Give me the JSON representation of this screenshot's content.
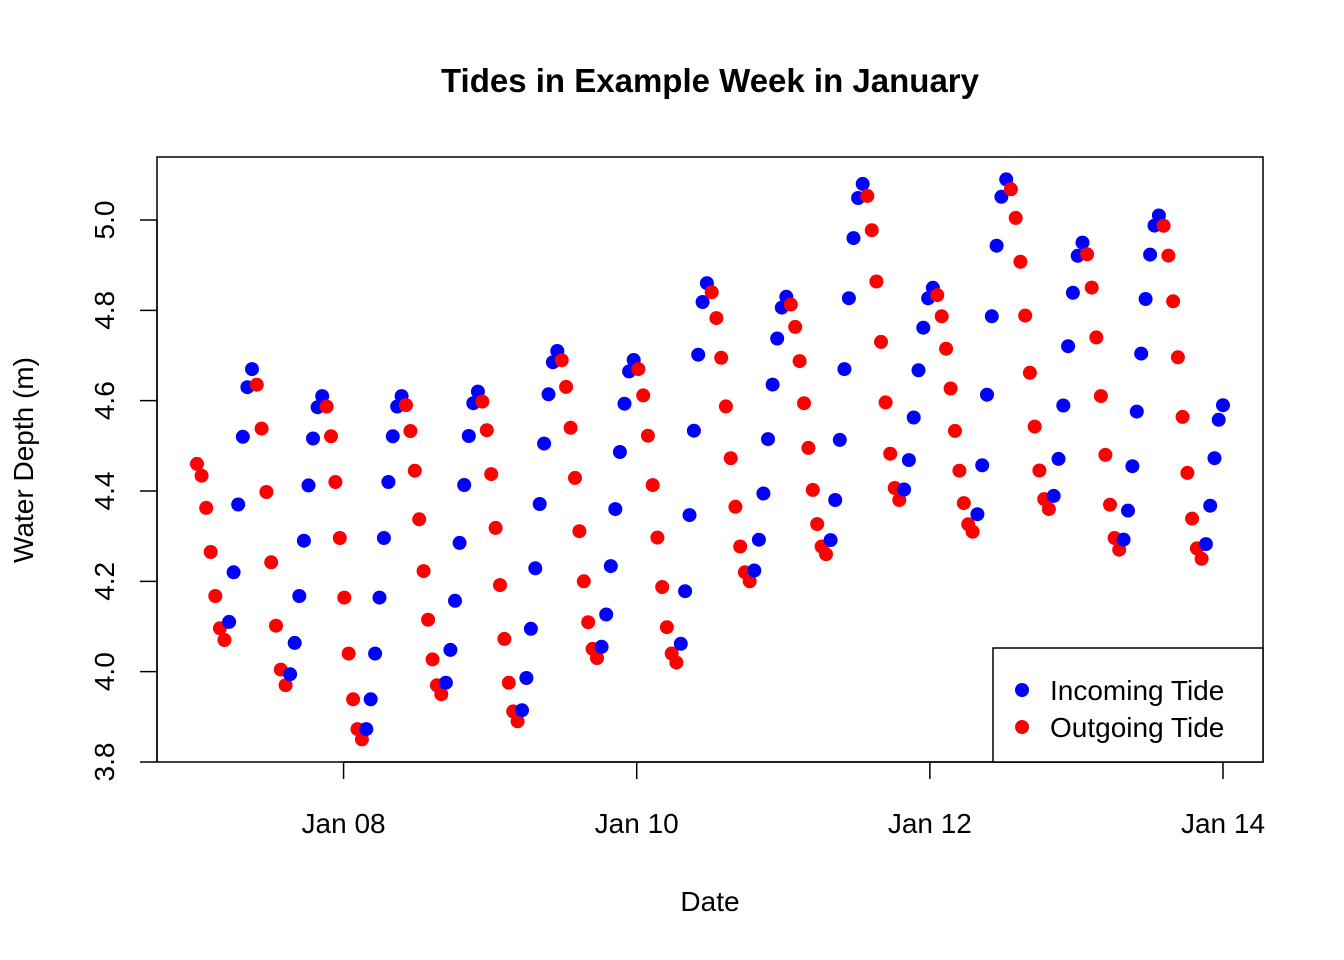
{
  "chart_data": {
    "type": "scatter",
    "title": "Tides in Example Week in January",
    "xlabel": "Date",
    "ylabel": "Water Depth (m)",
    "x_range": [
      "2024-01-07",
      "2024-01-14"
    ],
    "ylim": [
      3.8,
      5.12
    ],
    "x_tick_labels": [
      "Jan 08",
      "Jan 10",
      "Jan 12",
      "Jan 14"
    ],
    "x_tick_dates": [
      "2024-01-08",
      "2024-01-10",
      "2024-01-12",
      "2024-01-14"
    ],
    "y_tick_labels": [
      "3.8",
      "4.0",
      "4.2",
      "4.4",
      "4.6",
      "4.8",
      "5.0"
    ],
    "y_ticks": [
      3.8,
      4.0,
      4.2,
      4.4,
      4.6,
      4.8,
      5.0
    ],
    "grid": false,
    "legend_position": "bottom-right",
    "turning_points": [
      {
        "date": "2024-01-07 00:00",
        "depth": 4.46
      },
      {
        "date": "2024-01-07 04:30",
        "depth": 4.07
      },
      {
        "date": "2024-01-07 09:00",
        "depth": 4.67
      },
      {
        "date": "2024-01-07 14:30",
        "depth": 3.97
      },
      {
        "date": "2024-01-07 20:30",
        "depth": 4.61
      },
      {
        "date": "2024-01-08 03:00",
        "depth": 3.85
      },
      {
        "date": "2024-01-08 09:30",
        "depth": 4.61
      },
      {
        "date": "2024-01-08 16:00",
        "depth": 3.95
      },
      {
        "date": "2024-01-08 22:00",
        "depth": 4.62
      },
      {
        "date": "2024-01-09 04:30",
        "depth": 3.89
      },
      {
        "date": "2024-01-09 11:00",
        "depth": 4.71
      },
      {
        "date": "2024-01-09 17:30",
        "depth": 4.03
      },
      {
        "date": "2024-01-09 23:30",
        "depth": 4.69
      },
      {
        "date": "2024-01-10 06:30",
        "depth": 4.02
      },
      {
        "date": "2024-01-10 11:30",
        "depth": 4.86
      },
      {
        "date": "2024-01-10 18:30",
        "depth": 4.2
      },
      {
        "date": "2024-01-11 00:30",
        "depth": 4.83
      },
      {
        "date": "2024-01-11 07:00",
        "depth": 4.26
      },
      {
        "date": "2024-01-11 13:00",
        "depth": 5.08
      },
      {
        "date": "2024-01-11 19:00",
        "depth": 4.38
      },
      {
        "date": "2024-01-12 00:30",
        "depth": 4.85
      },
      {
        "date": "2024-01-12 07:00",
        "depth": 4.31
      },
      {
        "date": "2024-01-12 12:30",
        "depth": 5.09
      },
      {
        "date": "2024-01-12 19:30",
        "depth": 4.36
      },
      {
        "date": "2024-01-13 01:00",
        "depth": 4.95
      },
      {
        "date": "2024-01-13 07:00",
        "depth": 4.27
      },
      {
        "date": "2024-01-13 13:30",
        "depth": 5.01
      },
      {
        "date": "2024-01-13 20:30",
        "depth": 4.25
      },
      {
        "date": "2024-01-14 00:00",
        "depth": 4.59
      }
    ],
    "series": [
      {
        "name": "Incoming Tide",
        "color": "#0000FF"
      },
      {
        "name": "Outgoing Tide",
        "color": "#FF0000"
      }
    ]
  },
  "legend": {
    "items": [
      {
        "label": "Incoming Tide",
        "color": "#0000FF"
      },
      {
        "label": "Outgoing Tide",
        "color": "#FF0000"
      }
    ]
  }
}
